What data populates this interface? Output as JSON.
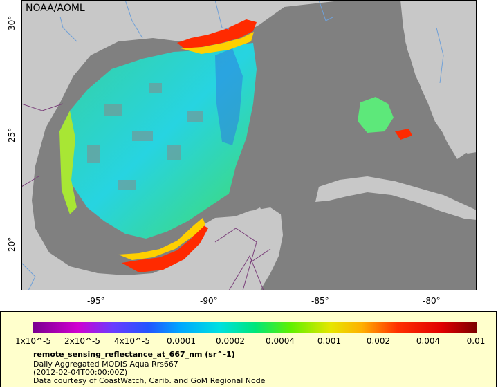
{
  "map": {
    "watermark": "NOAA/AOML",
    "lon_labels": [
      "-95°",
      "-90°",
      "-85°",
      "-80°"
    ],
    "lat_labels": [
      "30°",
      "25°",
      "20°"
    ],
    "colors": {
      "land": "#c8c8c8",
      "no_data": "#808080",
      "border": "#7a3f7a",
      "river": "#6fa0d8"
    }
  },
  "legend": {
    "colorbar_labels": [
      "1x10^-5",
      "2x10^-5",
      "4x10^-5",
      "0.0001",
      "0.0002",
      "0.0004",
      "0.001",
      "0.002",
      "0.004",
      "0.01"
    ],
    "title": "remote_sensing_reflectance_at_667_nm (sr^-1)",
    "line1": "Daily Aggregated MODIS Aqua Rrs667",
    "line2": "(2012-02-04T00:00:00Z)",
    "line3": "Data courtesy of CoastWatch, Carib. and GoM Regional Node",
    "background": "#ffffcc"
  }
}
